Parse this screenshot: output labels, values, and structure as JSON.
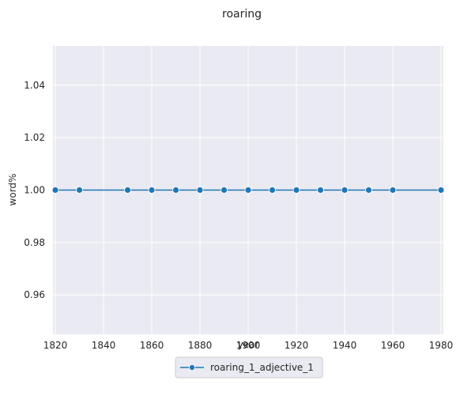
{
  "chart_data": {
    "type": "line",
    "title": "roaring",
    "xlabel": "year",
    "ylabel": "word%",
    "xlim": [
      1819,
      1981
    ],
    "ylim": [
      0.945,
      1.055
    ],
    "xticks": [
      "1820",
      "1840",
      "1860",
      "1880",
      "1900",
      "1920",
      "1940",
      "1960",
      "1980"
    ],
    "yticks": [
      "0.96",
      "0.98",
      "1.00",
      "1.02",
      "1.04"
    ],
    "grid": true,
    "legend_position": "bottom-center",
    "series": [
      {
        "name": "roaring_1_adjective_1",
        "color": "#1f77b4",
        "marker": "circle",
        "x": [
          1820,
          1830,
          1850,
          1860,
          1870,
          1880,
          1890,
          1900,
          1910,
          1920,
          1930,
          1940,
          1950,
          1960,
          1980
        ],
        "y": [
          1.0,
          1.0,
          1.0,
          1.0,
          1.0,
          1.0,
          1.0,
          1.0,
          1.0,
          1.0,
          1.0,
          1.0,
          1.0,
          1.0,
          1.0
        ]
      }
    ]
  },
  "colors": {
    "plot_background": "#eaeaf2",
    "grid": "#ffffff",
    "legend_border": "#cccccc"
  }
}
